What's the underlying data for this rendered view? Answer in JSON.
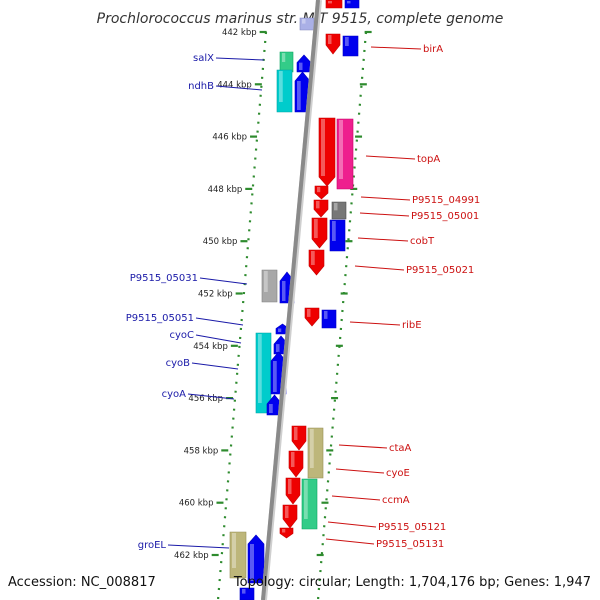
{
  "title": "Prochlorococcus marinus str. MIT 9515, complete genome",
  "footer": {
    "accession": "Accession: NC_008817",
    "summary": "Topology: circular; Length: 1,704,176 bp; Genes: 1,947"
  },
  "colors": {
    "backbone": "#8a8a8a",
    "ruler": "#2e8b2e",
    "left_label": "#1a1aa8",
    "right_label": "#cc1111",
    "forward_gene": "#0000ee",
    "reverse_gene": "#ee0000"
  },
  "ruler_ticks": [
    "442 kbp",
    "444 kbp",
    "446 kbp",
    "448 kbp",
    "450 kbp",
    "452 kbp",
    "454 kbp",
    "456 kbp",
    "458 kbp",
    "460 kbp",
    "462 kbp"
  ],
  "left_labels": [
    "salX",
    "ndhB",
    "P9515_05031",
    "P9515_05051",
    "cyoC",
    "cyoB",
    "cyoA",
    "groEL"
  ],
  "right_labels": [
    "birA",
    "topA",
    "P9515_04991",
    "P9515_05001",
    "cobT",
    "P9515_05021",
    "ribE",
    "ctaA",
    "cyoE",
    "ccmA",
    "P9515_05121",
    "P9515_05131"
  ]
}
